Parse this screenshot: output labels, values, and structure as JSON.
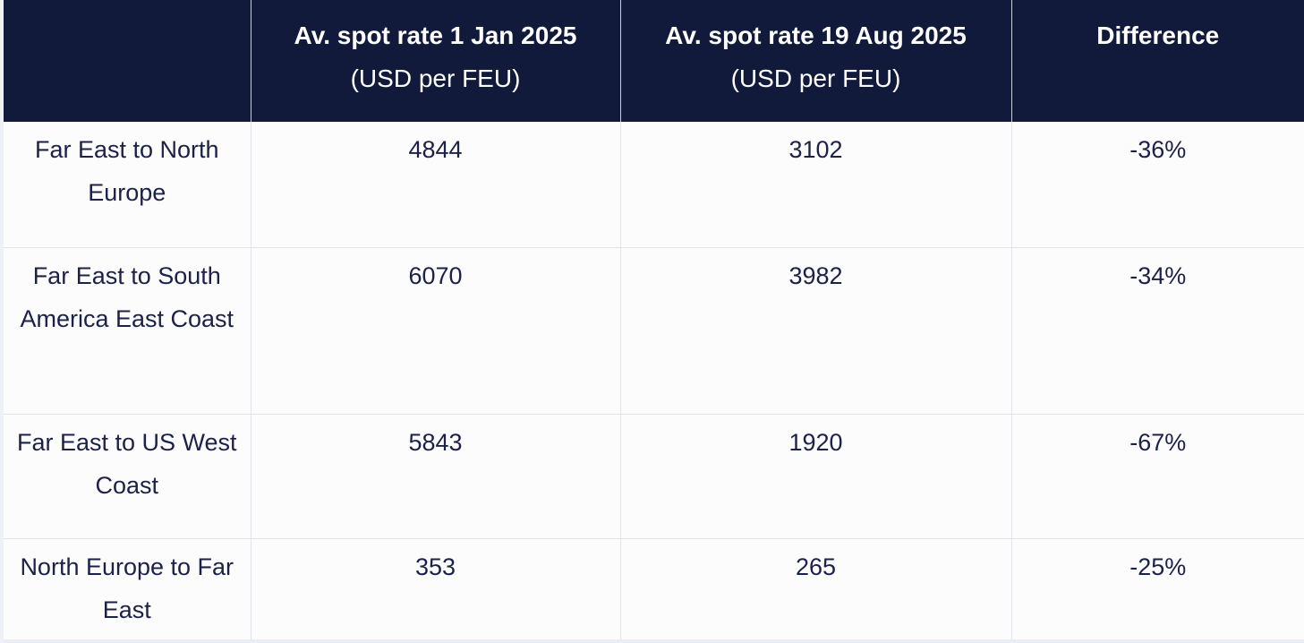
{
  "table": {
    "headers": [
      {
        "title": "",
        "unit": ""
      },
      {
        "title": "Av. spot rate 1 Jan 2025",
        "unit": "(USD per FEU)"
      },
      {
        "title": "Av. spot rate 19 Aug 2025",
        "unit": "(USD per FEU)"
      },
      {
        "title": "Difference",
        "unit": ""
      }
    ],
    "rows": [
      {
        "route": "Far East to North Europe",
        "jan": "4844",
        "aug": "3102",
        "diff": "-36%"
      },
      {
        "route": "Far East to South America East Coast",
        "jan": "6070",
        "aug": "3982",
        "diff": "-34%"
      },
      {
        "route": "Far East to US West Coast",
        "jan": "5843",
        "aug": "1920",
        "diff": "-67%"
      },
      {
        "route": "North Europe to Far East",
        "jan": "353",
        "aug": "265",
        "diff": "-25%"
      }
    ]
  },
  "colors": {
    "header_bg": "#121a3b",
    "header_text": "#ffffff",
    "body_text": "#1b2148",
    "grid": "#e1e4ea"
  }
}
